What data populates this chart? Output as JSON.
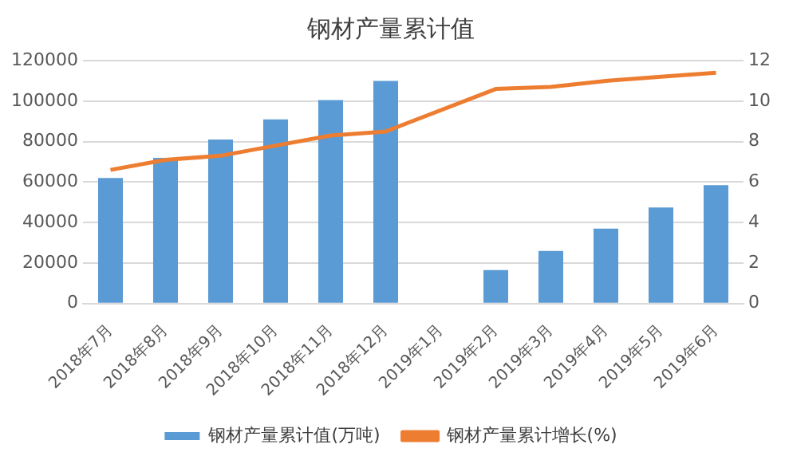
{
  "chart_data": {
    "type": "bar",
    "title": "钢材产量累计值",
    "categories": [
      "2018年7月",
      "2018年8月",
      "2018年9月",
      "2018年10月",
      "2018年11月",
      "2018年12月",
      "2019年1月",
      "2019年2月",
      "2019年3月",
      "2019年4月",
      "2019年5月",
      "2019年6月"
    ],
    "series": [
      {
        "name": "钢材产量累计值(万吨)",
        "color": "#5b9bd5",
        "values": [
          62000,
          72000,
          81000,
          91000,
          100500,
          110000,
          null,
          16500,
          26000,
          37000,
          47500,
          58500
        ]
      },
      {
        "name": "钢材产量累计增长(%)",
        "type": "line",
        "axis": "y2",
        "color": "#ed7d31",
        "values": [
          6.6,
          7.1,
          7.3,
          7.8,
          8.3,
          8.5,
          null,
          10.6,
          10.7,
          11.0,
          11.2,
          11.4
        ]
      }
    ],
    "ylim": [
      0,
      120000
    ],
    "yticks": [
      0,
      20000,
      40000,
      60000,
      80000,
      100000,
      120000
    ],
    "y2lim": [
      0,
      12
    ],
    "y2ticks": [
      0,
      2,
      4,
      6,
      8,
      10,
      12
    ],
    "grid": "y",
    "legend": "bottom",
    "marker": "none"
  }
}
